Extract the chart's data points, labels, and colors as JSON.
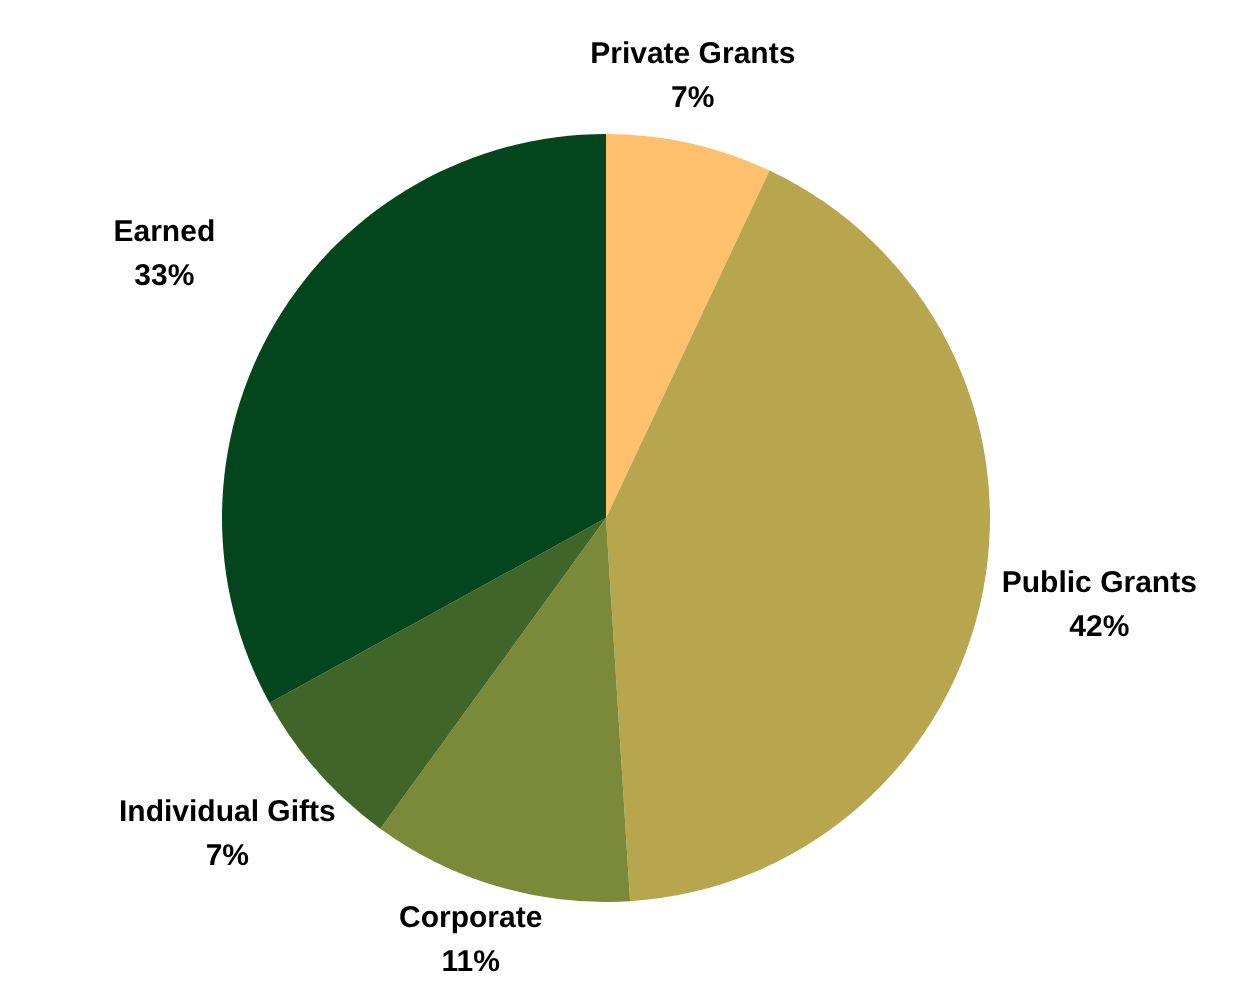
{
  "chart_data": {
    "type": "pie",
    "categories": [
      "Private Grants",
      "Public Grants",
      "Corporate",
      "Individual Gifts",
      "Earned"
    ],
    "values": [
      7,
      42,
      11,
      7,
      33
    ],
    "value_labels": [
      "7%",
      "42%",
      "11%",
      "7%",
      "33%"
    ],
    "colors": [
      "#ffc06e",
      "#b8a64e",
      "#7a8a38",
      "#3f6628",
      "#03461e"
    ],
    "legend": false
  }
}
